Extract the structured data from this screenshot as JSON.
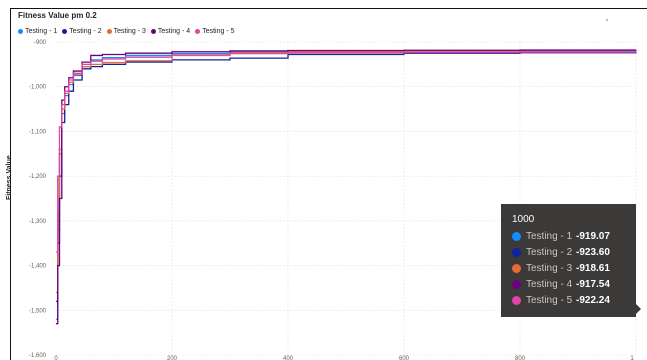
{
  "chart_data": {
    "type": "line",
    "title": "Fitness Value pm 0.2",
    "ylabel": "Fitness Value",
    "xlabel": "",
    "xlim": [
      0,
      1000
    ],
    "ylim": [
      -1600,
      -900
    ],
    "x_ticks": [
      "0",
      "200",
      "400",
      "600",
      "800",
      "1"
    ],
    "y_ticks": [
      "-900",
      "-1,000",
      "-1,100",
      "-1,200",
      "-1,300",
      "-1,400",
      "-1,500",
      "-1,600"
    ],
    "legend_position": "top-left",
    "series": [
      {
        "name": "Testing - 1",
        "color": "#118DFF",
        "x": [
          0,
          3,
          6,
          10,
          15,
          22,
          30,
          45,
          60,
          80,
          120,
          200,
          300,
          400,
          600,
          800,
          1000
        ],
        "y": [
          -1520,
          -1320,
          -1150,
          -1060,
          -1020,
          -995,
          -975,
          -955,
          -940,
          -935,
          -930,
          -926,
          -923,
          -922,
          -920,
          -919.5,
          -919.07
        ]
      },
      {
        "name": "Testing - 2",
        "color": "#12239E",
        "x": [
          0,
          3,
          6,
          10,
          15,
          22,
          30,
          45,
          60,
          80,
          120,
          200,
          300,
          400,
          600,
          800,
          1000
        ],
        "y": [
          -1480,
          -1350,
          -1200,
          -1080,
          -1040,
          -1010,
          -985,
          -960,
          -955,
          -950,
          -945,
          -940,
          -936,
          -928,
          -925,
          -924,
          -923.6
        ]
      },
      {
        "name": "Testing - 3",
        "color": "#E66C37",
        "x": [
          0,
          3,
          6,
          10,
          15,
          22,
          30,
          45,
          60,
          80,
          120,
          200,
          300,
          400,
          600,
          800,
          1000
        ],
        "y": [
          -1460,
          -1280,
          -1140,
          -1050,
          -1015,
          -990,
          -972,
          -955,
          -950,
          -946,
          -942,
          -930,
          -924,
          -922,
          -920,
          -919,
          -918.61
        ]
      },
      {
        "name": "Testing - 4",
        "color": "#6B007B",
        "x": [
          0,
          3,
          6,
          10,
          15,
          22,
          30,
          45,
          60,
          80,
          120,
          200,
          300,
          400,
          600,
          800,
          1000
        ],
        "y": [
          -1530,
          -1400,
          -1250,
          -1030,
          -1000,
          -980,
          -965,
          -945,
          -930,
          -928,
          -925,
          -922,
          -920,
          -919,
          -918.5,
          -918,
          -917.54
        ]
      },
      {
        "name": "Testing - 5",
        "color": "#E044A7",
        "x": [
          0,
          3,
          6,
          10,
          15,
          22,
          30,
          45,
          60,
          80,
          120,
          200,
          300,
          400,
          600,
          800,
          1000
        ],
        "y": [
          -1370,
          -1200,
          -1090,
          -1040,
          -1010,
          -985,
          -970,
          -950,
          -943,
          -938,
          -934,
          -929,
          -926,
          -924.5,
          -923,
          -922.5,
          -922.24
        ]
      }
    ]
  },
  "tooltip": {
    "title": "1000",
    "rows": [
      {
        "name": "Testing - 1",
        "value": "-919.07",
        "color": "#118DFF"
      },
      {
        "name": "Testing - 2",
        "value": "-923.60",
        "color": "#12239E"
      },
      {
        "name": "Testing - 3",
        "value": "-918.61",
        "color": "#E66C37"
      },
      {
        "name": "Testing - 4",
        "value": "-917.54",
        "color": "#6B007B"
      },
      {
        "name": "Testing - 5",
        "value": "-922.24",
        "color": "#E044A7"
      }
    ]
  }
}
